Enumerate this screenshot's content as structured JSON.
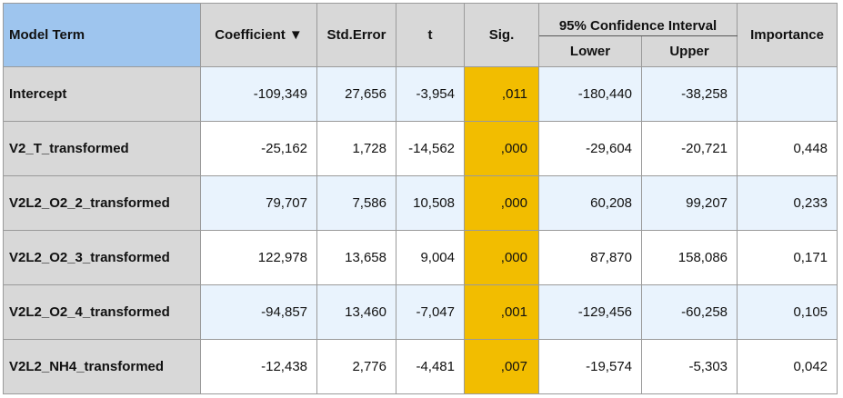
{
  "header": {
    "model_term": "Model Term",
    "coefficient": "Coefficient",
    "sort_indicator": "▼",
    "std_error": "Std.Error",
    "t": "t",
    "sig": "Sig.",
    "ci": "95% Confidence Interval",
    "lower": "Lower",
    "upper": "Upper",
    "importance": "Importance"
  },
  "colors": {
    "model_header": "#9ec5ee",
    "sig_highlight": "#f2bd00",
    "row_shade": "#e9f3fd",
    "term_column": "#d8d8d8"
  },
  "rows": [
    {
      "term": "Intercept",
      "coefficient": "-109,349",
      "std_error": "27,656",
      "t": "-3,954",
      "sig": ",011",
      "lower": "-180,440",
      "upper": "-38,258",
      "importance": ""
    },
    {
      "term": "V2_T_transformed",
      "coefficient": "-25,162",
      "std_error": "1,728",
      "t": "-14,562",
      "sig": ",000",
      "lower": "-29,604",
      "upper": "-20,721",
      "importance": "0,448"
    },
    {
      "term": "V2L2_O2_2_transformed",
      "coefficient": "79,707",
      "std_error": "7,586",
      "t": "10,508",
      "sig": ",000",
      "lower": "60,208",
      "upper": "99,207",
      "importance": "0,233"
    },
    {
      "term": "V2L2_O2_3_transformed",
      "coefficient": "122,978",
      "std_error": "13,658",
      "t": "9,004",
      "sig": ",000",
      "lower": "87,870",
      "upper": "158,086",
      "importance": "0,171"
    },
    {
      "term": "V2L2_O2_4_transformed",
      "coefficient": "-94,857",
      "std_error": "13,460",
      "t": "-7,047",
      "sig": ",001",
      "lower": "-129,456",
      "upper": "-60,258",
      "importance": "0,105"
    },
    {
      "term": "V2L2_NH4_transformed",
      "coefficient": "-12,438",
      "std_error": "2,776",
      "t": "-4,481",
      "sig": ",007",
      "lower": "-19,574",
      "upper": "-5,303",
      "importance": "0,042"
    }
  ]
}
